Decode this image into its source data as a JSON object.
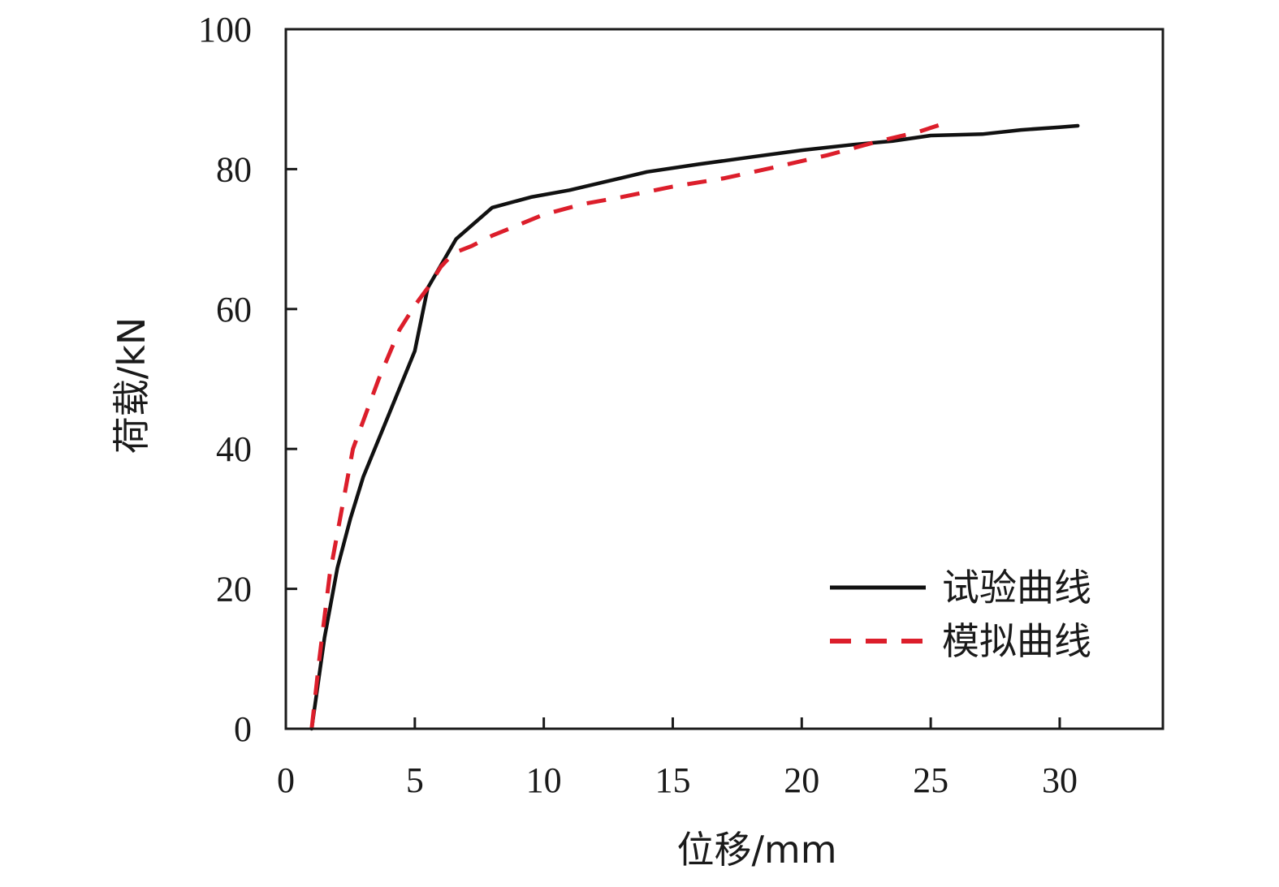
{
  "chart_data": {
    "type": "line",
    "title": "",
    "xlabel": "位移/mm",
    "ylabel": "荷载/kN",
    "xlim": [
      0,
      34
    ],
    "ylim": [
      0,
      100
    ],
    "xticks": [
      0,
      5,
      10,
      15,
      20,
      25,
      30
    ],
    "yticks": [
      0,
      20,
      40,
      60,
      80,
      100
    ],
    "grid": false,
    "legend_position": "bottom-right",
    "series": [
      {
        "name": "试验曲线",
        "color": "#111111",
        "style": "solid",
        "x": [
          1.0,
          1.5,
          2.0,
          2.5,
          3.0,
          4.0,
          5.0,
          5.5,
          6.6,
          8.0,
          9.5,
          11.0,
          12.5,
          14.0,
          16.0,
          18.0,
          20.0,
          22.0,
          23.5,
          25.0,
          27.0,
          28.5,
          30.0,
          30.7
        ],
        "values": [
          0,
          13,
          23,
          30,
          36,
          45,
          54,
          63,
          70,
          74.5,
          76,
          77,
          78.3,
          79.6,
          80.7,
          81.7,
          82.7,
          83.5,
          84.0,
          84.8,
          85.0,
          85.6,
          86.0,
          86.2
        ]
      },
      {
        "name": "模拟曲线",
        "color": "#dc1e2b",
        "style": "dashed",
        "x": [
          1.0,
          1.3,
          1.7,
          2.2,
          2.6,
          3.0,
          3.6,
          4.4,
          5.0,
          5.5,
          6.0,
          6.5,
          7.2,
          8.0,
          9.0,
          10.0,
          11.5,
          13.0,
          15.0,
          17.0,
          19.0,
          21.0,
          23.0,
          24.5,
          25.5
        ],
        "values": [
          0,
          10,
          22,
          32,
          40,
          44,
          50,
          57,
          60.5,
          63,
          66,
          68,
          69,
          70.5,
          72,
          73.5,
          75,
          76,
          77.5,
          78.7,
          80.3,
          82,
          84,
          85.3,
          86.5
        ]
      }
    ]
  }
}
